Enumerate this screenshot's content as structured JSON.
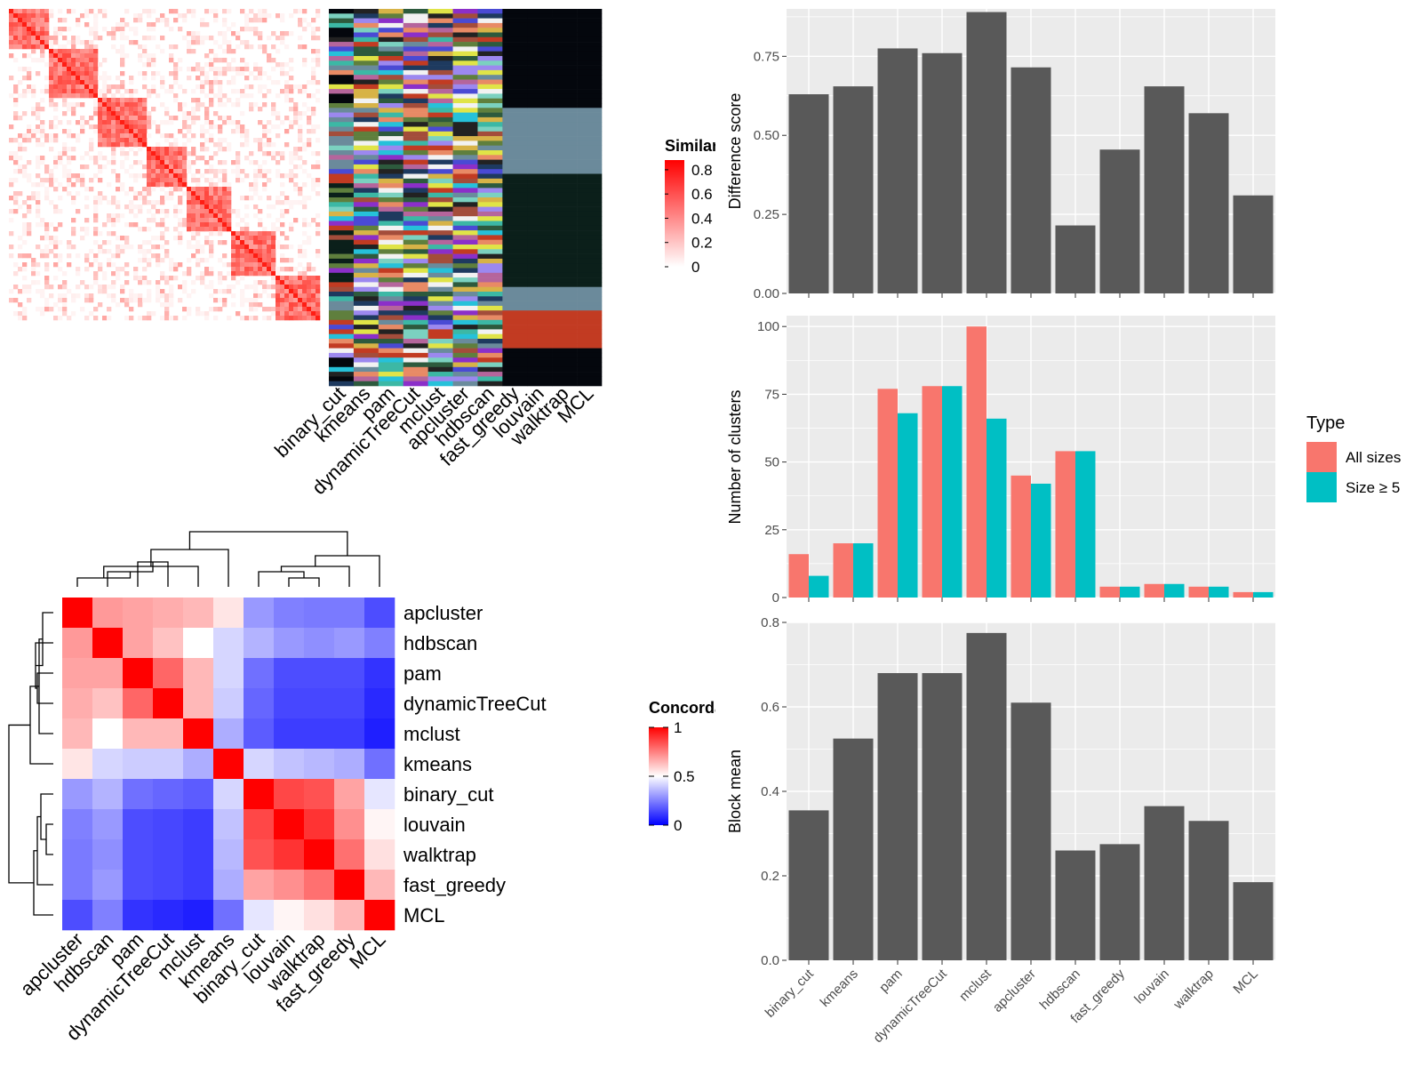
{
  "chart_data": [
    {
      "type": "heatmap",
      "legend_title": "Similarity",
      "legend_ticks": [
        0,
        0.2,
        0.4,
        0.6,
        0.8
      ],
      "colors": {
        "low": "#ffffff",
        "high": "#ff0000"
      },
      "column_labels": [
        "binary_cut",
        "kmeans",
        "pam",
        "dynamicTreeCut",
        "mclust",
        "apcluster",
        "hdbscan",
        "fast_greedy",
        "louvain",
        "walktrap",
        "MCL"
      ]
    },
    {
      "type": "heatmap",
      "legend_title": "Concordance",
      "legend_ticks": [
        0,
        0.5,
        1
      ],
      "colors": {
        "low": "#0000ff",
        "mid": "#ffffff",
        "high": "#ff0000"
      },
      "rows": [
        "apcluster",
        "hdbscan",
        "pam",
        "dynamicTreeCut",
        "mclust",
        "kmeans",
        "binary_cut",
        "louvain",
        "walktrap",
        "fast_greedy",
        "MCL"
      ],
      "columns": [
        "apcluster",
        "hdbscan",
        "pam",
        "dynamicTreeCut",
        "mclust",
        "kmeans",
        "binary_cut",
        "louvain",
        "walktrap",
        "fast_greedy",
        "MCL"
      ],
      "values": [
        [
          1.0,
          0.7,
          0.68,
          0.66,
          0.64,
          0.55,
          0.3,
          0.25,
          0.24,
          0.24,
          0.15
        ],
        [
          0.7,
          1.0,
          0.68,
          0.62,
          0.5,
          0.42,
          0.35,
          0.3,
          0.28,
          0.3,
          0.25
        ],
        [
          0.68,
          0.68,
          1.0,
          0.8,
          0.64,
          0.42,
          0.22,
          0.15,
          0.15,
          0.15,
          0.1
        ],
        [
          0.66,
          0.62,
          0.8,
          1.0,
          0.64,
          0.4,
          0.2,
          0.14,
          0.14,
          0.14,
          0.08
        ],
        [
          0.64,
          0.5,
          0.64,
          0.64,
          1.0,
          0.34,
          0.18,
          0.12,
          0.12,
          0.12,
          0.06
        ],
        [
          0.55,
          0.42,
          0.4,
          0.4,
          0.34,
          1.0,
          0.42,
          0.38,
          0.36,
          0.34,
          0.22
        ],
        [
          0.3,
          0.35,
          0.22,
          0.2,
          0.18,
          0.42,
          1.0,
          0.86,
          0.84,
          0.68,
          0.45
        ],
        [
          0.25,
          0.3,
          0.15,
          0.14,
          0.12,
          0.38,
          0.86,
          1.0,
          0.9,
          0.72,
          0.52
        ],
        [
          0.24,
          0.28,
          0.15,
          0.14,
          0.12,
          0.36,
          0.84,
          0.9,
          1.0,
          0.78,
          0.56
        ],
        [
          0.24,
          0.3,
          0.15,
          0.14,
          0.12,
          0.34,
          0.68,
          0.72,
          0.78,
          1.0,
          0.64
        ],
        [
          0.15,
          0.25,
          0.1,
          0.08,
          0.06,
          0.22,
          0.45,
          0.52,
          0.56,
          0.64,
          1.0
        ]
      ]
    },
    {
      "type": "bar",
      "categories": [
        "binary_cut",
        "kmeans",
        "pam",
        "dynamicTreeCut",
        "mclust",
        "apcluster",
        "hdbscan",
        "fast_greedy",
        "louvain",
        "walktrap",
        "MCL"
      ],
      "values": [
        0.63,
        0.655,
        0.775,
        0.76,
        0.89,
        0.715,
        0.215,
        0.455,
        0.655,
        0.57,
        0.31
      ],
      "ylabel": "Difference score",
      "ylim": [
        0,
        0.9
      ],
      "yticks": [
        0.0,
        0.25,
        0.5,
        0.75
      ],
      "ytick_labels": [
        "0.00",
        "0.25",
        "0.50",
        "0.75"
      ],
      "bar_color": "#595959",
      "show_xtick_labels": false
    },
    {
      "type": "bar",
      "categories": [
        "binary_cut",
        "kmeans",
        "pam",
        "dynamicTreeCut",
        "mclust",
        "apcluster",
        "hdbscan",
        "fast_greedy",
        "louvain",
        "walktrap",
        "MCL"
      ],
      "series": [
        {
          "name": "All sizes",
          "color": "#f8766d",
          "values": [
            16,
            20,
            77,
            78,
            100,
            45,
            54,
            4,
            5,
            4,
            2
          ]
        },
        {
          "name": "Size ≥ 5",
          "color": "#00bfc4",
          "values": [
            8,
            20,
            68,
            78,
            66,
            42,
            54,
            4,
            5,
            4,
            2
          ]
        }
      ],
      "ylabel": "Number of clusters",
      "ylim": [
        0,
        104
      ],
      "yticks": [
        0,
        25,
        50,
        75,
        100
      ],
      "ytick_labels": [
        "0",
        "25",
        "50",
        "75",
        "100"
      ],
      "legend_title": "Type",
      "legend_position": "right",
      "show_xtick_labels": false
    },
    {
      "type": "bar",
      "categories": [
        "binary_cut",
        "kmeans",
        "pam",
        "dynamicTreeCut",
        "mclust",
        "apcluster",
        "hdbscan",
        "fast_greedy",
        "louvain",
        "walktrap",
        "MCL"
      ],
      "values": [
        0.355,
        0.525,
        0.68,
        0.68,
        0.775,
        0.61,
        0.26,
        0.275,
        0.365,
        0.33,
        0.185
      ],
      "ylabel": "Block mean",
      "ylim": [
        0,
        0.8
      ],
      "yticks": [
        0.0,
        0.2,
        0.4,
        0.6,
        0.8
      ],
      "ytick_labels": [
        "0.0",
        "0.2",
        "0.4",
        "0.6",
        "0.8"
      ],
      "bar_color": "#595959",
      "show_xtick_labels": true
    }
  ]
}
